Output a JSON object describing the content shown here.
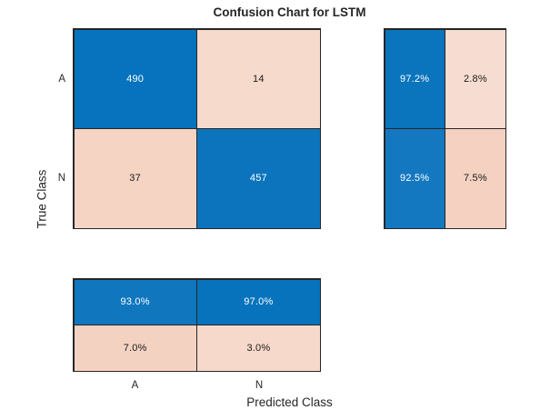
{
  "title": "Confusion Chart for LSTM",
  "axes": {
    "x_label": "Predicted Class",
    "y_label": "True Class",
    "x_ticks": [
      "A",
      "N"
    ],
    "y_ticks": [
      "A",
      "N"
    ]
  },
  "colors": {
    "grid_line": "#262626",
    "figure_background": "#ffffff",
    "diagonal_blue": "#0772BD",
    "off_diagonal_pink": "#F6D9CB",
    "label_text": "#262626"
  },
  "main": {
    "cells": [
      {
        "label": "490",
        "bg": "#0772BD",
        "fg": "#FFFFFF"
      },
      {
        "label": "14",
        "bg": "#F6DACB",
        "fg": "#1A1A1A"
      },
      {
        "label": "37",
        "bg": "#F5D4C4",
        "fg": "#1A1A1A"
      },
      {
        "label": "457",
        "bg": "#0C74BD",
        "fg": "#FFFFFF"
      }
    ]
  },
  "row_summary": {
    "cells": [
      {
        "label": "97.2%",
        "bg": "#0A74BC",
        "fg": "#FFFFFF"
      },
      {
        "label": "2.8%",
        "bg": "#F7DDD1",
        "fg": "#1A1A1A"
      },
      {
        "label": "92.5%",
        "bg": "#1478C0",
        "fg": "#FFFFFF"
      },
      {
        "label": "7.5%",
        "bg": "#F4D1C1",
        "fg": "#1A1A1A"
      }
    ]
  },
  "column_summary": {
    "cells": [
      {
        "label": "93.0%",
        "bg": "#1076BE",
        "fg": "#FFFFFF"
      },
      {
        "label": "97.0%",
        "bg": "#0773BC",
        "fg": "#FFFFFF"
      },
      {
        "label": "7.0%",
        "bg": "#F4D2C2",
        "fg": "#1A1A1A"
      },
      {
        "label": "3.0%",
        "bg": "#F6D9CB",
        "fg": "#1A1A1A"
      }
    ]
  },
  "chart_data": {
    "type": "heatmap",
    "title": "Confusion Chart for LSTM",
    "xlabel": "Predicted Class",
    "ylabel": "True Class",
    "classes": [
      "A",
      "N"
    ],
    "matrix_rows_true_class": [
      "A",
      "N"
    ],
    "matrix_cols_predicted_class": [
      "A",
      "N"
    ],
    "matrix": [
      [
        490,
        14
      ],
      [
        37,
        457
      ]
    ],
    "row_summary_percent": [
      [
        97.2,
        2.8
      ],
      [
        92.5,
        7.5
      ]
    ],
    "column_summary_percent": [
      [
        93.0,
        97.0
      ],
      [
        7.0,
        3.0
      ]
    ],
    "diagonal_color": "#0772BD",
    "off_diagonal_color": "#F6D9CB",
    "legend": "none",
    "grid": "cell borders only"
  }
}
